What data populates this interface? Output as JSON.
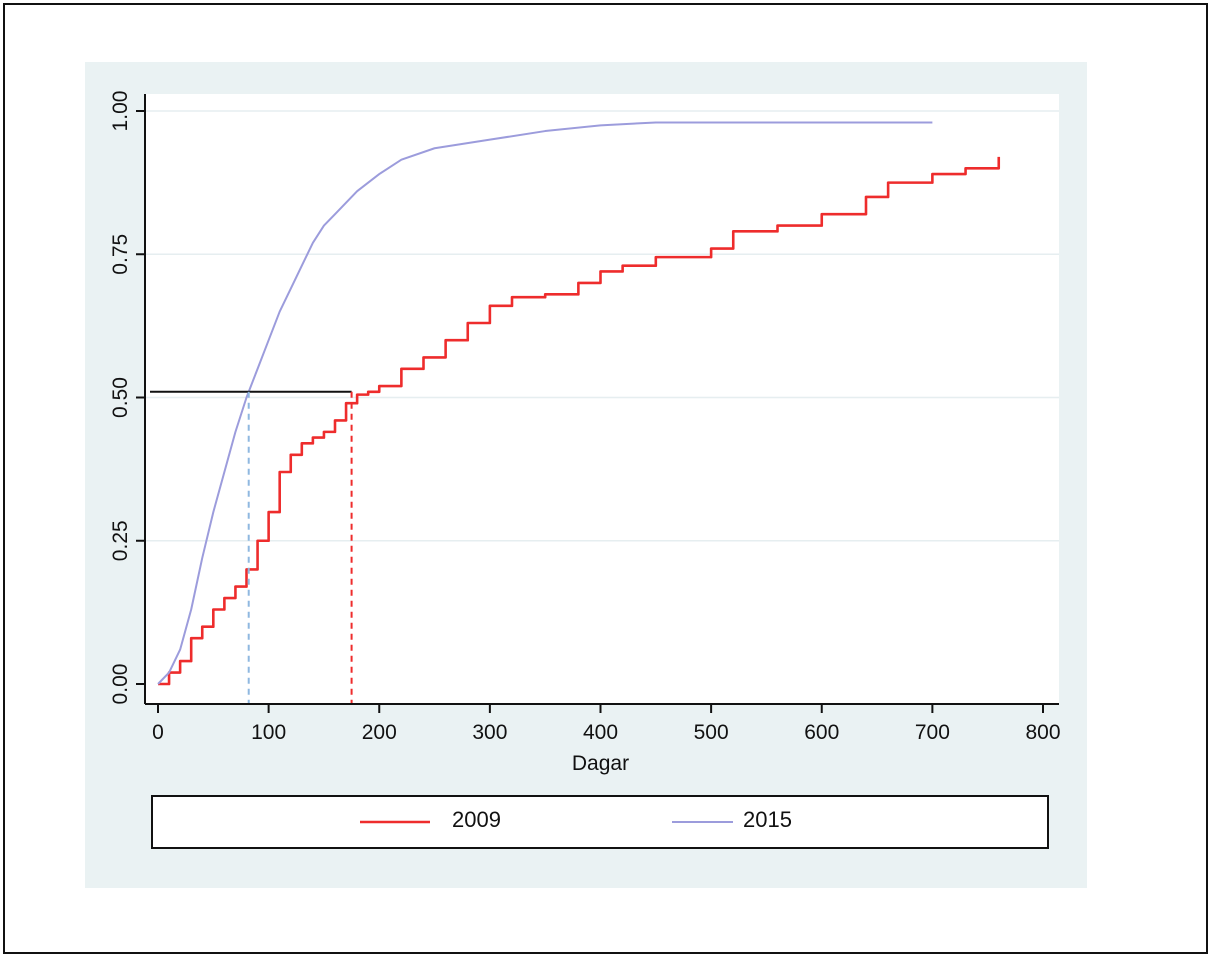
{
  "chart_data": {
    "type": "line",
    "title": "",
    "xlabel": "Dagar",
    "ylabel": "",
    "xlim": [
      0,
      800
    ],
    "ylim": [
      0,
      1
    ],
    "x_ticks": [
      0,
      100,
      200,
      300,
      400,
      500,
      600,
      700,
      800
    ],
    "x_tick_labels": [
      "0",
      "100",
      "200",
      "300",
      "400",
      "500",
      "600",
      "700",
      "800"
    ],
    "y_ticks": [
      0,
      0.25,
      0.5,
      0.75,
      1.0
    ],
    "y_tick_labels": [
      "0.00",
      "0.25",
      "0.50",
      "0.75",
      "1.00"
    ],
    "grid": "horizontal",
    "legend_position": "bottom",
    "colors": {
      "plot_region": "#eaf2f3",
      "plot_area": "#ffffff",
      "gridline": "#e6eef0",
      "axis": "#111111",
      "series_2009": "#ee2c2c",
      "series_2015": "#9c9cdc",
      "median_line": "#111111",
      "median_2015_marker": "#8fb8e0",
      "median_2009_marker": "#ee2c2c"
    },
    "series": [
      {
        "name": "2009",
        "color": "#ee2c2c",
        "step": true,
        "points": [
          [
            0,
            0
          ],
          [
            10,
            0.02
          ],
          [
            20,
            0.04
          ],
          [
            30,
            0.08
          ],
          [
            40,
            0.1
          ],
          [
            50,
            0.13
          ],
          [
            60,
            0.15
          ],
          [
            70,
            0.17
          ],
          [
            80,
            0.2
          ],
          [
            90,
            0.25
          ],
          [
            100,
            0.3
          ],
          [
            110,
            0.37
          ],
          [
            120,
            0.4
          ],
          [
            130,
            0.42
          ],
          [
            140,
            0.43
          ],
          [
            150,
            0.44
          ],
          [
            160,
            0.46
          ],
          [
            170,
            0.49
          ],
          [
            180,
            0.505
          ],
          [
            190,
            0.51
          ],
          [
            200,
            0.52
          ],
          [
            220,
            0.55
          ],
          [
            240,
            0.57
          ],
          [
            260,
            0.6
          ],
          [
            280,
            0.63
          ],
          [
            300,
            0.66
          ],
          [
            320,
            0.675
          ],
          [
            350,
            0.68
          ],
          [
            380,
            0.7
          ],
          [
            400,
            0.72
          ],
          [
            420,
            0.73
          ],
          [
            450,
            0.745
          ],
          [
            500,
            0.76
          ],
          [
            520,
            0.79
          ],
          [
            560,
            0.8
          ],
          [
            600,
            0.82
          ],
          [
            640,
            0.85
          ],
          [
            660,
            0.875
          ],
          [
            700,
            0.89
          ],
          [
            730,
            0.9
          ],
          [
            760,
            0.92
          ]
        ]
      },
      {
        "name": "2015",
        "color": "#9c9cdc",
        "step": false,
        "points": [
          [
            0,
            0
          ],
          [
            10,
            0.02
          ],
          [
            20,
            0.06
          ],
          [
            30,
            0.13
          ],
          [
            40,
            0.22
          ],
          [
            50,
            0.3
          ],
          [
            60,
            0.37
          ],
          [
            70,
            0.44
          ],
          [
            80,
            0.5
          ],
          [
            90,
            0.55
          ],
          [
            100,
            0.6
          ],
          [
            110,
            0.65
          ],
          [
            120,
            0.69
          ],
          [
            130,
            0.73
          ],
          [
            140,
            0.77
          ],
          [
            150,
            0.8
          ],
          [
            160,
            0.82
          ],
          [
            180,
            0.86
          ],
          [
            200,
            0.89
          ],
          [
            220,
            0.915
          ],
          [
            250,
            0.935
          ],
          [
            300,
            0.95
          ],
          [
            350,
            0.965
          ],
          [
            400,
            0.975
          ],
          [
            450,
            0.98
          ],
          [
            500,
            0.98
          ],
          [
            600,
            0.98
          ],
          [
            700,
            0.98
          ]
        ]
      }
    ],
    "reference_lines": {
      "median_level": 0.51,
      "median_2015_x": 82,
      "median_2009_x": 175
    }
  },
  "legend": {
    "items": [
      {
        "label": "2009",
        "color": "#ee2c2c"
      },
      {
        "label": "2015",
        "color": "#9c9cdc"
      }
    ]
  }
}
